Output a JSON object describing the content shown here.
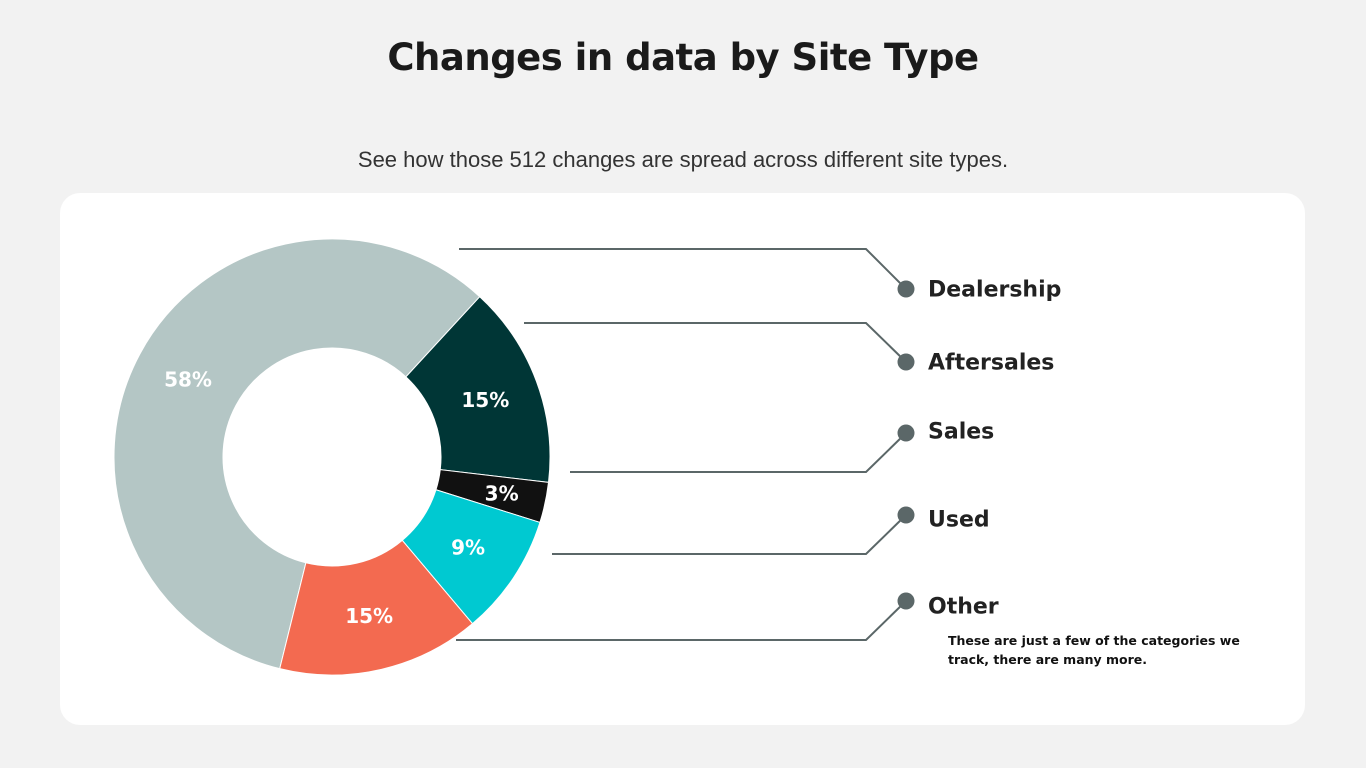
{
  "title": "Changes in data by Site Type",
  "subtitle": "See how those 512 changes are spread across different site types.",
  "note": "These are just a few of the categories we track, there are many more.",
  "colors": {
    "connector": "#5b6768",
    "dot": "#5b6768",
    "background": "#f2f2f2",
    "card": "#ffffff"
  },
  "chart_data": {
    "type": "pie",
    "title": "Changes in data by Site Type",
    "donut": true,
    "categories": [
      "Dealership",
      "Aftersales",
      "Sales",
      "Used",
      "Other"
    ],
    "values": [
      58,
      15,
      3,
      9,
      15
    ],
    "labels": [
      "58%",
      "15%",
      "3%",
      "9%",
      "15%"
    ],
    "colors": [
      "#b4c6c5",
      "#003636",
      "#111111",
      "#00c9d1",
      "#f36a50"
    ],
    "legend_position": "right"
  }
}
